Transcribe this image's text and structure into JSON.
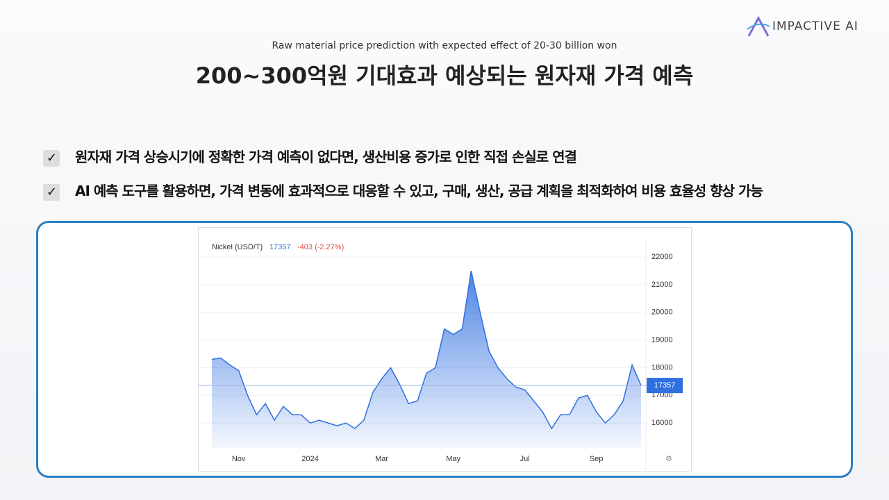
{
  "header": {
    "brand": "IMPACTIVE AI",
    "subtitle": "Raw material price prediction with expected effect of 20-30 billion won",
    "title": "200~300억원 기대효과 예상되는 원자재 가격 예측"
  },
  "bullets": [
    "원자재 가격 상승시기에 정확한 가격 예측이 없다면, 생산비용 증가로 인한 직접 손실로 연결",
    "AI 예측 도구를 활용하면, 가격 변동에 효과적으로 대응할 수 있고, 구매, 생산, 공급 계획을 최적화하여 비용 효율성 향상 가능"
  ],
  "chart_data": {
    "type": "area",
    "title": "Nickel (USD/T)",
    "last_price": 17357,
    "change": "-403 (-2.27%)",
    "color": "#2f6fe0",
    "categories": [
      null,
      null,
      null,
      "Nov",
      null,
      null,
      null,
      null,
      null,
      null,
      null,
      "2024",
      null,
      null,
      null,
      null,
      null,
      null,
      null,
      "Mar",
      null,
      null,
      null,
      null,
      null,
      null,
      null,
      "May",
      null,
      null,
      null,
      null,
      null,
      null,
      null,
      "Jul",
      null,
      null,
      null,
      null,
      null,
      null,
      null,
      "Sep",
      null,
      null,
      null,
      null,
      null
    ],
    "values": [
      18300,
      18350,
      18100,
      17900,
      17000,
      16300,
      16700,
      16100,
      16600,
      16300,
      16300,
      16000,
      16100,
      16000,
      15900,
      16000,
      15800,
      16100,
      17100,
      17600,
      18000,
      17400,
      16700,
      16800,
      17800,
      18000,
      19400,
      19200,
      19400,
      21500,
      20000,
      18600,
      18000,
      17600,
      17300,
      17200,
      16800,
      16400,
      15800,
      16300,
      16300,
      16900,
      17000,
      16400,
      16000,
      16300,
      16800,
      18100,
      17357
    ],
    "ylim": [
      15100,
      22630
    ],
    "yticks": [
      16000,
      17000,
      18000,
      19000,
      20000,
      21000,
      22000
    ],
    "grid": true
  }
}
